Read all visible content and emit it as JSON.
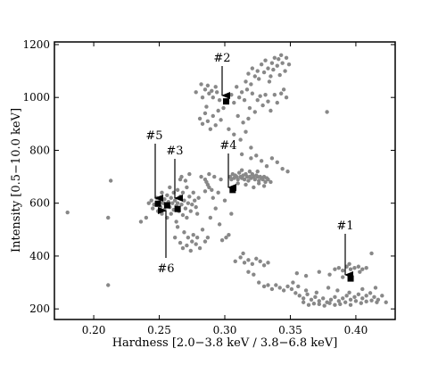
{
  "chart_data": {
    "type": "scatter",
    "title": "",
    "xlabel": "Hardness [2.0−3.8 keV / 3.8−6.8 keV]",
    "ylabel": "Intensity [0.5−10.0 keV]",
    "xlim": [
      0.17,
      0.43
    ],
    "ylim": [
      160,
      1210
    ],
    "xticks": [
      0.2,
      0.25,
      0.3,
      0.35,
      0.4
    ],
    "xtick_labels": [
      "0.20",
      "0.25",
      "0.30",
      "0.35",
      "0.40"
    ],
    "yticks": [
      200,
      400,
      600,
      800,
      1000,
      1200
    ],
    "ytick_labels": [
      "200",
      "400",
      "600",
      "800",
      "1000",
      "1200"
    ],
    "grid": false,
    "colors": {
      "points": "#888888",
      "markers": "#000000"
    },
    "series": [
      {
        "marker": "circle",
        "points": [
          [
            0.18,
            565
          ],
          [
            0.211,
            290
          ],
          [
            0.211,
            545
          ],
          [
            0.213,
            685
          ],
          [
            0.236,
            530
          ],
          [
            0.24,
            545
          ],
          [
            0.242,
            600
          ],
          [
            0.244,
            610
          ],
          [
            0.245,
            580
          ],
          [
            0.246,
            595
          ],
          [
            0.248,
            620
          ],
          [
            0.249,
            570
          ],
          [
            0.25,
            605
          ],
          [
            0.251,
            585
          ],
          [
            0.252,
            640
          ],
          [
            0.252,
            560
          ],
          [
            0.253,
            600
          ],
          [
            0.254,
            615
          ],
          [
            0.254,
            575
          ],
          [
            0.255,
            595
          ],
          [
            0.256,
            630
          ],
          [
            0.256,
            545
          ],
          [
            0.257,
            605
          ],
          [
            0.258,
            585
          ],
          [
            0.258,
            660
          ],
          [
            0.259,
            620
          ],
          [
            0.259,
            560
          ],
          [
            0.26,
            600
          ],
          [
            0.261,
            640
          ],
          [
            0.261,
            575
          ],
          [
            0.262,
            610
          ],
          [
            0.263,
            590
          ],
          [
            0.263,
            530
          ],
          [
            0.264,
            650
          ],
          [
            0.264,
            600
          ],
          [
            0.265,
            570
          ],
          [
            0.266,
            625
          ],
          [
            0.266,
            690
          ],
          [
            0.267,
            595
          ],
          [
            0.268,
            555
          ],
          [
            0.268,
            640
          ],
          [
            0.269,
            610
          ],
          [
            0.27,
            580
          ],
          [
            0.271,
            660
          ],
          [
            0.271,
            545
          ],
          [
            0.272,
            600
          ],
          [
            0.273,
            625
          ],
          [
            0.274,
            570
          ],
          [
            0.275,
            595
          ],
          [
            0.276,
            640
          ],
          [
            0.277,
            610
          ],
          [
            0.278,
            585
          ],
          [
            0.279,
            560
          ],
          [
            0.28,
            620
          ],
          [
            0.267,
            700
          ],
          [
            0.27,
            685
          ],
          [
            0.273,
            710
          ],
          [
            0.262,
            470
          ],
          [
            0.264,
            510
          ],
          [
            0.266,
            450
          ],
          [
            0.268,
            430
          ],
          [
            0.269,
            490
          ],
          [
            0.271,
            440
          ],
          [
            0.272,
            470
          ],
          [
            0.274,
            420
          ],
          [
            0.275,
            455
          ],
          [
            0.276,
            480
          ],
          [
            0.278,
            445
          ],
          [
            0.279,
            470
          ],
          [
            0.281,
            430
          ],
          [
            0.283,
            500
          ],
          [
            0.285,
            455
          ],
          [
            0.287,
            470
          ],
          [
            0.282,
            700
          ],
          [
            0.285,
            690
          ],
          [
            0.287,
            670
          ],
          [
            0.29,
            650
          ],
          [
            0.292,
            700
          ],
          [
            0.295,
            640
          ],
          [
            0.297,
            690
          ],
          [
            0.285,
            645
          ],
          [
            0.288,
            710
          ],
          [
            0.286,
            680
          ],
          [
            0.288,
            660
          ],
          [
            0.291,
            620
          ],
          [
            0.293,
            580
          ],
          [
            0.289,
            545
          ],
          [
            0.296,
            520
          ],
          [
            0.3,
            610
          ],
          [
            0.305,
            560
          ],
          [
            0.303,
            480
          ],
          [
            0.298,
            460
          ],
          [
            0.301,
            470
          ],
          [
            0.278,
            1020
          ],
          [
            0.282,
            1050
          ],
          [
            0.283,
            1000
          ],
          [
            0.285,
            1030
          ],
          [
            0.287,
            1045
          ],
          [
            0.288,
            1015
          ],
          [
            0.29,
            1025
          ],
          [
            0.291,
            1000
          ],
          [
            0.293,
            1040
          ],
          [
            0.294,
            1020
          ],
          [
            0.296,
            990
          ],
          [
            0.286,
            965
          ],
          [
            0.281,
            920
          ],
          [
            0.283,
            900
          ],
          [
            0.285,
            940
          ],
          [
            0.287,
            910
          ],
          [
            0.289,
            880
          ],
          [
            0.291,
            930
          ],
          [
            0.293,
            895
          ],
          [
            0.295,
            950
          ],
          [
            0.297,
            915
          ],
          [
            0.299,
            960
          ],
          [
            0.302,
            985
          ],
          [
            0.305,
            1010
          ],
          [
            0.307,
            980
          ],
          [
            0.309,
            1040
          ],
          [
            0.311,
            1000
          ],
          [
            0.313,
            1020
          ],
          [
            0.315,
            990
          ],
          [
            0.317,
            1030
          ],
          [
            0.319,
            960
          ],
          [
            0.321,
            1015
          ],
          [
            0.323,
            945
          ],
          [
            0.325,
            990
          ],
          [
            0.327,
            1005
          ],
          [
            0.329,
            970
          ],
          [
            0.331,
            1010
          ],
          [
            0.333,
            985
          ],
          [
            0.335,
            950
          ],
          [
            0.338,
            1010
          ],
          [
            0.34,
            980
          ],
          [
            0.343,
            1015
          ],
          [
            0.345,
            1030
          ],
          [
            0.347,
            1000
          ],
          [
            0.31,
            930
          ],
          [
            0.314,
            905
          ],
          [
            0.318,
            920
          ],
          [
            0.303,
            880
          ],
          [
            0.307,
            860
          ],
          [
            0.312,
            840
          ],
          [
            0.316,
            870
          ],
          [
            0.32,
            810
          ],
          [
            0.324,
            780
          ],
          [
            0.328,
            760
          ],
          [
            0.332,
            740
          ],
          [
            0.336,
            770
          ],
          [
            0.34,
            755
          ],
          [
            0.344,
            730
          ],
          [
            0.348,
            720
          ],
          [
            0.32,
            770
          ],
          [
            0.313,
            785
          ],
          [
            0.316,
            1060
          ],
          [
            0.318,
            1090
          ],
          [
            0.32,
            1050
          ],
          [
            0.321,
            1110
          ],
          [
            0.323,
            1080
          ],
          [
            0.325,
            1100
          ],
          [
            0.326,
            1070
          ],
          [
            0.328,
            1125
          ],
          [
            0.33,
            1095
          ],
          [
            0.331,
            1140
          ],
          [
            0.333,
            1110
          ],
          [
            0.335,
            1080
          ],
          [
            0.336,
            1130
          ],
          [
            0.338,
            1150
          ],
          [
            0.34,
            1120
          ],
          [
            0.341,
            1145
          ],
          [
            0.343,
            1160
          ],
          [
            0.344,
            1130
          ],
          [
            0.346,
            1100
          ],
          [
            0.347,
            1150
          ],
          [
            0.349,
            1125
          ],
          [
            0.337,
            1105
          ],
          [
            0.342,
            1085
          ],
          [
            0.334,
            1060
          ],
          [
            0.304,
            700
          ],
          [
            0.305,
            690
          ],
          [
            0.306,
            710
          ],
          [
            0.307,
            695
          ],
          [
            0.308,
            705
          ],
          [
            0.309,
            700
          ],
          [
            0.31,
            690
          ],
          [
            0.311,
            715
          ],
          [
            0.312,
            700
          ],
          [
            0.313,
            695
          ],
          [
            0.314,
            705
          ],
          [
            0.315,
            690
          ],
          [
            0.316,
            710
          ],
          [
            0.317,
            700
          ],
          [
            0.318,
            685
          ],
          [
            0.319,
            700
          ],
          [
            0.32,
            695
          ],
          [
            0.321,
            710
          ],
          [
            0.322,
            700
          ],
          [
            0.323,
            690
          ],
          [
            0.324,
            705
          ],
          [
            0.325,
            700
          ],
          [
            0.326,
            685
          ],
          [
            0.327,
            700
          ],
          [
            0.328,
            695
          ],
          [
            0.329,
            690
          ],
          [
            0.33,
            700
          ],
          [
            0.331,
            680
          ],
          [
            0.332,
            695
          ],
          [
            0.333,
            690
          ],
          [
            0.31,
            675
          ],
          [
            0.316,
            670
          ],
          [
            0.322,
            660
          ],
          [
            0.326,
            675
          ],
          [
            0.33,
            665
          ],
          [
            0.335,
            680
          ],
          [
            0.319,
            720
          ],
          [
            0.325,
            720
          ],
          [
            0.313,
            725
          ],
          [
            0.378,
            945
          ],
          [
            0.308,
            380
          ],
          [
            0.312,
            395
          ],
          [
            0.315,
            375
          ],
          [
            0.318,
            385
          ],
          [
            0.321,
            370
          ],
          [
            0.324,
            390
          ],
          [
            0.327,
            380
          ],
          [
            0.33,
            365
          ],
          [
            0.333,
            375
          ],
          [
            0.314,
            410
          ],
          [
            0.318,
            340
          ],
          [
            0.322,
            330
          ],
          [
            0.326,
            300
          ],
          [
            0.33,
            285
          ],
          [
            0.333,
            290
          ],
          [
            0.336,
            275
          ],
          [
            0.339,
            290
          ],
          [
            0.342,
            280
          ],
          [
            0.345,
            270
          ],
          [
            0.348,
            285
          ],
          [
            0.351,
            275
          ],
          [
            0.354,
            260
          ],
          [
            0.357,
            250
          ],
          [
            0.36,
            240
          ],
          [
            0.363,
            255
          ],
          [
            0.366,
            235
          ],
          [
            0.369,
            245
          ],
          [
            0.372,
            230
          ],
          [
            0.375,
            240
          ],
          [
            0.378,
            225
          ],
          [
            0.381,
            235
          ],
          [
            0.384,
            245
          ],
          [
            0.387,
            230
          ],
          [
            0.39,
            240
          ],
          [
            0.393,
            250
          ],
          [
            0.396,
            235
          ],
          [
            0.399,
            245
          ],
          [
            0.402,
            255
          ],
          [
            0.405,
            240
          ],
          [
            0.408,
            250
          ],
          [
            0.411,
            260
          ],
          [
            0.414,
            245
          ],
          [
            0.417,
            235
          ],
          [
            0.42,
            250
          ],
          [
            0.423,
            225
          ],
          [
            0.36,
            225
          ],
          [
            0.364,
            215
          ],
          [
            0.368,
            220
          ],
          [
            0.372,
            218
          ],
          [
            0.376,
            212
          ],
          [
            0.38,
            222
          ],
          [
            0.384,
            215
          ],
          [
            0.388,
            218
          ],
          [
            0.392,
            225
          ],
          [
            0.396,
            215
          ],
          [
            0.4,
            230
          ],
          [
            0.404,
            222
          ],
          [
            0.408,
            228
          ],
          [
            0.412,
            232
          ],
          [
            0.416,
            225
          ],
          [
            0.352,
            300
          ],
          [
            0.356,
            285
          ],
          [
            0.362,
            270
          ],
          [
            0.37,
            262
          ],
          [
            0.379,
            280
          ],
          [
            0.386,
            270
          ],
          [
            0.395,
            262
          ],
          [
            0.405,
            275
          ],
          [
            0.415,
            280
          ],
          [
            0.355,
            335
          ],
          [
            0.362,
            325
          ],
          [
            0.372,
            340
          ],
          [
            0.38,
            330
          ],
          [
            0.384,
            350
          ],
          [
            0.387,
            355
          ],
          [
            0.39,
            345
          ],
          [
            0.393,
            360
          ],
          [
            0.396,
            350
          ],
          [
            0.399,
            355
          ],
          [
            0.402,
            360
          ],
          [
            0.405,
            350
          ],
          [
            0.408,
            355
          ],
          [
            0.395,
            370
          ],
          [
            0.403,
            340
          ],
          [
            0.412,
            410
          ],
          [
            0.39,
            320
          ]
        ]
      },
      {
        "marker": "square",
        "points": [
          [
            0.396,
            315
          ],
          [
            0.301,
            985
          ],
          [
            0.264,
            578
          ],
          [
            0.306,
            650
          ],
          [
            0.249,
            598
          ],
          [
            0.256,
            592
          ]
        ]
      }
    ],
    "annotations": [
      {
        "label": "#1",
        "x": 0.396,
        "y": 315
      },
      {
        "label": "#2",
        "x": 0.301,
        "y": 985
      },
      {
        "label": "#3",
        "x": 0.264,
        "y": 578
      },
      {
        "label": "#4",
        "x": 0.306,
        "y": 650
      },
      {
        "label": "#5",
        "x": 0.249,
        "y": 598
      },
      {
        "label": "#6",
        "x": 0.256,
        "y": 592
      }
    ]
  }
}
